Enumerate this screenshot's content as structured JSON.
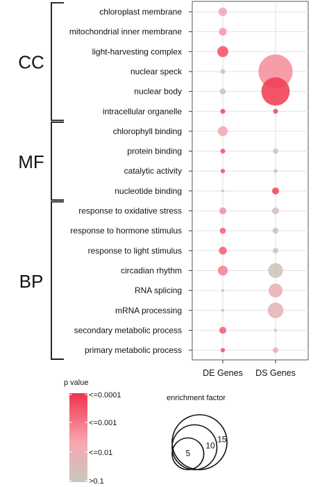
{
  "chart_data": {
    "type": "scatter",
    "categories": [
      "chloroplast membrane",
      "mitochondrial inner membrane",
      "light-harvesting complex",
      "nuclear speck",
      "nuclear body",
      "intracellular organelle",
      "chlorophyll binding",
      "protein binding",
      "catalytic activity",
      "nucleotide binding",
      "response to oxidative stress",
      "response to hormone stimulus",
      "response to light stimulus",
      "circadian rhythm",
      "RNA splicing",
      "mRNA processing",
      "secondary metabolic process",
      "primary metabolic process"
    ],
    "groups": [
      {
        "label": "CC",
        "rows": [
          0,
          5
        ]
      },
      {
        "label": "MF",
        "rows": [
          6,
          9
        ]
      },
      {
        "label": "BP",
        "rows": [
          10,
          17
        ]
      }
    ],
    "x_categories": [
      "DE Genes",
      "DS Genes"
    ],
    "series": [
      {
        "name": "DE Genes",
        "enrichment": [
          3,
          2.5,
          5,
          1,
          1.5,
          1,
          4,
          1,
          0.8,
          0.3,
          2,
          1.5,
          2.5,
          4,
          0.2,
          0.2,
          2,
          0.8
        ],
        "pvalue_level": [
          0.45,
          0.55,
          0.85,
          0.1,
          0.1,
          0.9,
          0.45,
          0.85,
          0.85,
          0.05,
          0.6,
          0.8,
          0.8,
          0.65,
          0.1,
          0.1,
          0.8,
          0.85
        ]
      },
      {
        "name": "DS Genes",
        "enrichment": [
          0,
          0,
          0,
          48,
          33,
          1,
          0,
          1.2,
          0.6,
          2,
          2,
          1.5,
          1.2,
          9,
          8,
          10,
          0.3,
          1.2
        ],
        "pvalue_level": [
          0,
          0,
          0,
          0.6,
          0.95,
          0.9,
          0,
          0.1,
          0.1,
          0.9,
          0.1,
          0.1,
          0.1,
          0.05,
          0.35,
          0.3,
          0.1,
          0.45
        ]
      }
    ],
    "grid": true,
    "color_legend": {
      "title": "p value",
      "labels": [
        "<=0.0001",
        "<=0.001",
        "<=0.01",
        ">0.1"
      ]
    },
    "size_legend": {
      "title": "enrichment factor",
      "labels": [
        "5",
        "10",
        "15"
      ],
      "values": [
        5,
        10,
        15
      ]
    },
    "colors": {
      "high": "#f0324a",
      "mid": "#f7a6b2",
      "low": "#c8c8bc"
    }
  }
}
